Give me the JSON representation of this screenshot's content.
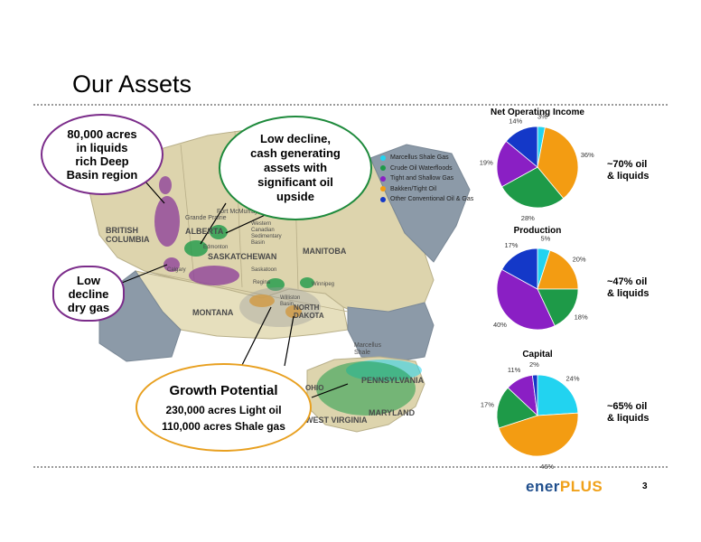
{
  "slide": {
    "title": "Our Assets",
    "page_number": "3",
    "brand": {
      "part1": "ener",
      "part2": "PLUS"
    }
  },
  "callouts": [
    {
      "id": "deep-basin",
      "lines": [
        "80,000 acres",
        "in liquids",
        "rich Deep",
        "Basin region"
      ],
      "border": "#7b2c8a"
    },
    {
      "id": "low-decline-cash",
      "lines": [
        "Low decline,",
        "cash generating",
        "assets with",
        "significant oil",
        "upside"
      ],
      "border": "#1e8a3c"
    },
    {
      "id": "low-decline-gas",
      "lines": [
        "Low",
        "decline",
        "dry gas"
      ],
      "border": "#7b2c8a"
    },
    {
      "id": "growth",
      "heading": "Growth Potential",
      "lines": [
        "230,000 acres Light oil",
        "110,000 acres Shale gas"
      ],
      "border": "#e8a020"
    }
  ],
  "legend": [
    {
      "label": "Marcellus Shale Gas",
      "color": "#22d3f0"
    },
    {
      "label": "Crude Oil Waterfloods",
      "color": "#1e9a48"
    },
    {
      "label": "Tight and Shallow Gas",
      "color": "#8a1fc4"
    },
    {
      "label": "Bakken/Tight Oil",
      "color": "#f39c12"
    },
    {
      "label": "Other Conventional Oil & Gas",
      "color": "#1438c8"
    }
  ],
  "map_labels": [
    {
      "text": "BRITISH\nCOLUMBIA"
    },
    {
      "text": "ALBERTA"
    },
    {
      "text": "SASKATCHEWAN"
    },
    {
      "text": "MANITOBA"
    },
    {
      "text": "MONTANA"
    },
    {
      "text": "NORTH\nDAKOTA"
    },
    {
      "text": "PENNSYLVANIA"
    },
    {
      "text": "WEST VIRGINIA"
    },
    {
      "text": "MARYLAND"
    },
    {
      "text": "Marcellus\nShale"
    },
    {
      "text": "Fort McMurray"
    },
    {
      "text": "Grande Prairie"
    },
    {
      "text": "Edmonton"
    },
    {
      "text": "Calgary"
    },
    {
      "text": "Saskatoon"
    },
    {
      "text": "Regina"
    },
    {
      "text": "Winnipeg"
    },
    {
      "text": "Western\nCanadian\nSedimentary\nBasin"
    },
    {
      "text": "Williston\nBasin"
    },
    {
      "text": "OHIO"
    }
  ],
  "chart_data": [
    {
      "type": "pie",
      "title": "Net Operating Income",
      "categories": [
        "Marcellus Shale Gas",
        "Bakken/Tight Oil",
        "Crude Oil Waterfloods",
        "Tight and Shallow Gas",
        "Other Conventional Oil & Gas"
      ],
      "values": [
        3,
        36,
        28,
        19,
        14
      ],
      "labels": [
        "3%",
        "36%",
        "28%",
        "19%",
        "14%"
      ],
      "note": [
        "~70% oil",
        "& liquids"
      ]
    },
    {
      "type": "pie",
      "title": "Production",
      "categories": [
        "Marcellus Shale Gas",
        "Bakken/Tight Oil",
        "Crude Oil Waterfloods",
        "Tight and Shallow Gas",
        "Other Conventional Oil & Gas"
      ],
      "values": [
        5,
        20,
        18,
        40,
        17
      ],
      "labels": [
        "5%",
        "20%",
        "18%",
        "40%",
        "17%"
      ],
      "note": [
        "~47% oil",
        "& liquids"
      ]
    },
    {
      "type": "pie",
      "title": "Capital",
      "categories": [
        "Marcellus Shale Gas",
        "Bakken/Tight Oil",
        "Crude Oil Waterfloods",
        "Tight and Shallow Gas",
        "Other Conventional Oil & Gas"
      ],
      "values": [
        24,
        46,
        17,
        11,
        2
      ],
      "labels": [
        "24%",
        "46%",
        "17%",
        "11%",
        "2%"
      ],
      "note": [
        "~65% oil",
        "& liquids"
      ]
    }
  ]
}
